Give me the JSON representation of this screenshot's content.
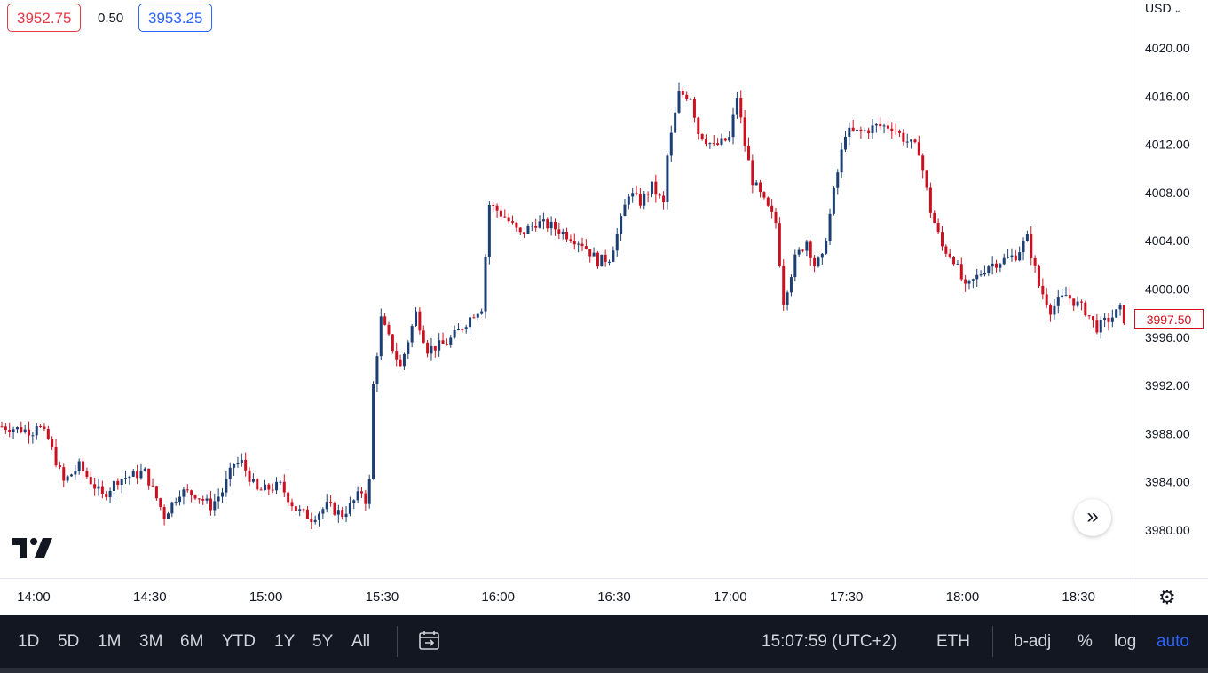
{
  "header": {
    "bid": "3952.75",
    "spread": "0.50",
    "ask": "3953.25",
    "currency": "USD",
    "currency_chevron": "⌄"
  },
  "current_price_label": "3997.50",
  "toolbar": {
    "ranges": [
      "1D",
      "5D",
      "1M",
      "3M",
      "6M",
      "YTD",
      "1Y",
      "5Y",
      "All"
    ],
    "date_range_icon": "calendar-goto-icon",
    "clock": "15:07:59 (UTC+2)",
    "session": "ETH",
    "adjust": "b-adj",
    "percent": "%",
    "log": "log",
    "auto": "auto"
  },
  "scroll_button_icon": "»",
  "settings_icon": "⚙",
  "colors": {
    "up": "#1c3f73",
    "down": "#cc1020",
    "bid": "#e53945",
    "ask": "#2962ff",
    "toolbar_bg": "#131722",
    "auto_active": "#2962ff"
  },
  "chart_data": {
    "type": "candlestick",
    "symbol_currency": "USD",
    "xlabels": [
      "14:00",
      "14:30",
      "15:00",
      "15:30",
      "16:00",
      "16:30",
      "17:00",
      "17:30",
      "18:00",
      "18:30"
    ],
    "yticks": [
      4020,
      4016,
      4012,
      4008,
      4004,
      4000,
      3996,
      3992,
      3988,
      3984,
      3980
    ],
    "ylim": [
      3976.3,
      4024.2
    ],
    "x_start_minutes": 0,
    "candle_minutes": 1,
    "last_price": 3997.5,
    "grid": false,
    "keyframes": [
      [
        0,
        3988.6
      ],
      [
        8,
        3988.2
      ],
      [
        9,
        3988.9
      ],
      [
        12,
        3987.5
      ],
      [
        16,
        3984.0
      ],
      [
        20,
        3985.3
      ],
      [
        26,
        3982.8
      ],
      [
        30,
        3984.2
      ],
      [
        37,
        3984.8
      ],
      [
        42,
        3981.2
      ],
      [
        46,
        3983.2
      ],
      [
        50,
        3983.0
      ],
      [
        54,
        3982.0
      ],
      [
        57,
        3983.2
      ],
      [
        60,
        3985.5
      ],
      [
        62,
        3985.6
      ],
      [
        66,
        3983.2
      ],
      [
        72,
        3983.7
      ],
      [
        76,
        3981.7
      ],
      [
        80,
        3981.0
      ],
      [
        84,
        3982.0
      ],
      [
        88,
        3981.3
      ],
      [
        90,
        3982.0
      ],
      [
        93,
        3983.2
      ],
      [
        94,
        3982.5
      ],
      [
        95,
        3984.0
      ],
      [
        96,
        3992.0
      ],
      [
        98,
        3997.5
      ],
      [
        103,
        3993.5
      ],
      [
        107,
        3998.0
      ],
      [
        110,
        3995.0
      ],
      [
        115,
        3995.5
      ],
      [
        118,
        3996.5
      ],
      [
        122,
        3998.0
      ],
      [
        124,
        3998.5
      ],
      [
        126,
        4007.0
      ],
      [
        130,
        4006.0
      ],
      [
        134,
        4004.5
      ],
      [
        138,
        4005.5
      ],
      [
        142,
        4005.2
      ],
      [
        146,
        4004.5
      ],
      [
        150,
        4003.8
      ],
      [
        154,
        4002.3
      ],
      [
        157,
        4002.6
      ],
      [
        159,
        4004.5
      ],
      [
        162,
        4008.0
      ],
      [
        165,
        4007.2
      ],
      [
        168,
        4008.5
      ],
      [
        171,
        4007.0
      ],
      [
        172,
        4011.0
      ],
      [
        175,
        4016.2
      ],
      [
        178,
        4016.0
      ],
      [
        180,
        4013.0
      ],
      [
        184,
        4011.8
      ],
      [
        188,
        4012.5
      ],
      [
        190,
        4016.0
      ],
      [
        192,
        4012.0
      ],
      [
        194,
        4009.0
      ],
      [
        197,
        4007.2
      ],
      [
        200,
        4005.5
      ],
      [
        202,
        3999.0
      ],
      [
        205,
        4002.5
      ],
      [
        208,
        4004.0
      ],
      [
        210,
        4002.0
      ],
      [
        212,
        4002.5
      ],
      [
        215,
        4008.0
      ],
      [
        218,
        4013.0
      ],
      [
        222,
        4013.0
      ],
      [
        226,
        4013.5
      ],
      [
        230,
        4013.5
      ],
      [
        233,
        4012.5
      ],
      [
        237,
        4011.5
      ],
      [
        240,
        4006.5
      ],
      [
        243,
        4003.5
      ],
      [
        246,
        4002.5
      ],
      [
        249,
        4000.0
      ],
      [
        252,
        4001.0
      ],
      [
        255,
        4002.0
      ],
      [
        258,
        4002.3
      ],
      [
        262,
        4002.8
      ],
      [
        265,
        4004.2
      ],
      [
        268,
        4000.3
      ],
      [
        271,
        3998.3
      ],
      [
        275,
        3999.5
      ],
      [
        280,
        3998.2
      ],
      [
        283,
        3996.8
      ],
      [
        287,
        3997.7
      ],
      [
        289,
        3998.3
      ],
      [
        290,
        3997.5
      ]
    ]
  }
}
